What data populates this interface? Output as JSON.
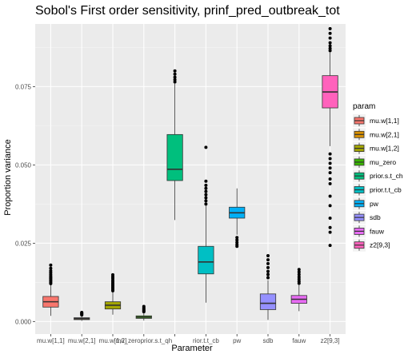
{
  "chart_data": {
    "type": "box",
    "title": "Sobol's First order sensitivity,  prinf_pred_outbreak_tot",
    "xlabel": "Parameter",
    "ylabel": "Proportion variance",
    "ylim": [
      -0.004,
      0.095
    ],
    "yticks": [
      0.0,
      0.025,
      0.05,
      0.075
    ],
    "ytick_labels": [
      "0.000",
      "0.025",
      "0.050",
      "0.075"
    ],
    "grid": true,
    "legend_title": "param",
    "legend_position": "right",
    "categories": [
      "mu.w[1,1]",
      "mu.w[2,1]",
      "mu.w[1,2]",
      "mu_zero",
      "prior.s.t_ch",
      "prior.t.t_cb",
      "pw",
      "sdb",
      "fauw",
      "z2[9,3]"
    ],
    "xtick_labels": [
      "mu.w[1,1]",
      "mu.w[2,1]",
      "mu.w[1,2]",
      "mu_zeroprior.s.t_qh",
      "",
      "rior.t.t_cb",
      "pw",
      "sdb",
      "fauw",
      "z2[9,3]"
    ],
    "legend_labels": [
      "mu.w[1,1]",
      "mu.w[2,1]",
      "mu.w[1,2]",
      "mu_zero",
      "prior.s.t_ch",
      "prior.t.t_cb",
      "pw",
      "sdb",
      "fauw",
      "z2[9,3]"
    ],
    "colors": [
      "#F8766D",
      "#D89000",
      "#A3A500",
      "#39B600",
      "#00BF7D",
      "#00BFC4",
      "#00B0F6",
      "#9590FF",
      "#E76BF3",
      "#FF62BC"
    ],
    "boxes": [
      {
        "q1": 0.0046,
        "median": 0.0063,
        "q3": 0.008,
        "whisker_low": 0.0018,
        "whisker_high": 0.0118,
        "outliers": [
          0.0121,
          0.0125,
          0.0129,
          0.0133,
          0.0137,
          0.0141,
          0.0145,
          0.015,
          0.0156,
          0.0162,
          0.017,
          0.018
        ]
      },
      {
        "q1": 0.0006,
        "median": 0.0009,
        "q3": 0.0012,
        "whisker_low": 0.0002,
        "whisker_high": 0.0019,
        "outliers": [
          0.0021,
          0.0023,
          0.0025,
          0.0027,
          0.0029
        ]
      },
      {
        "q1": 0.004,
        "median": 0.0052,
        "q3": 0.0063,
        "whisker_low": 0.0022,
        "whisker_high": 0.0095,
        "outliers": [
          0.0098,
          0.0102,
          0.0106,
          0.011,
          0.0114,
          0.0118,
          0.0122,
          0.0127,
          0.0132,
          0.0138,
          0.0143,
          0.0149
        ]
      },
      {
        "q1": 0.001,
        "median": 0.0014,
        "q3": 0.0018,
        "whisker_low": 0.0003,
        "whisker_high": 0.0029,
        "outliers": [
          0.0031,
          0.0034,
          0.0037,
          0.004,
          0.0044,
          0.0048
        ]
      },
      {
        "q1": 0.045,
        "median": 0.0486,
        "q3": 0.0597,
        "whisker_low": 0.0324,
        "whisker_high": 0.076,
        "outliers": [
          0.0765,
          0.0772,
          0.078,
          0.079,
          0.08
        ]
      },
      {
        "q1": 0.0152,
        "median": 0.019,
        "q3": 0.024,
        "whisker_low": 0.006,
        "whisker_high": 0.037,
        "outliers": [
          0.0375,
          0.0385,
          0.0395,
          0.0405,
          0.0415,
          0.0425,
          0.0435,
          0.0448,
          0.0556
        ]
      },
      {
        "q1": 0.033,
        "median": 0.0347,
        "q3": 0.0365,
        "whisker_low": 0.0277,
        "whisker_high": 0.0425,
        "outliers": [
          0.0268,
          0.026,
          0.0252,
          0.0245,
          0.024
        ]
      },
      {
        "q1": 0.0038,
        "median": 0.0058,
        "q3": 0.0088,
        "whisker_low": 0.0005,
        "whisker_high": 0.0132,
        "outliers": [
          0.014,
          0.015,
          0.016,
          0.0172,
          0.0185,
          0.0197,
          0.021
        ]
      },
      {
        "q1": 0.0058,
        "median": 0.0071,
        "q3": 0.0083,
        "whisker_low": 0.0033,
        "whisker_high": 0.0118,
        "outliers": [
          0.0122,
          0.0128,
          0.0135,
          0.0142,
          0.015,
          0.0158,
          0.0166
        ]
      },
      {
        "q1": 0.0682,
        "median": 0.0733,
        "q3": 0.0785,
        "whisker_low": 0.056,
        "whisker_high": 0.086,
        "outliers": [
          0.0865,
          0.0872,
          0.088,
          0.089,
          0.0905,
          0.092,
          0.0935,
          0.0535,
          0.052,
          0.0505,
          0.049,
          0.0475,
          0.0455,
          0.044,
          0.04,
          0.037,
          0.033,
          0.03,
          0.0285,
          0.0243
        ]
      }
    ]
  }
}
